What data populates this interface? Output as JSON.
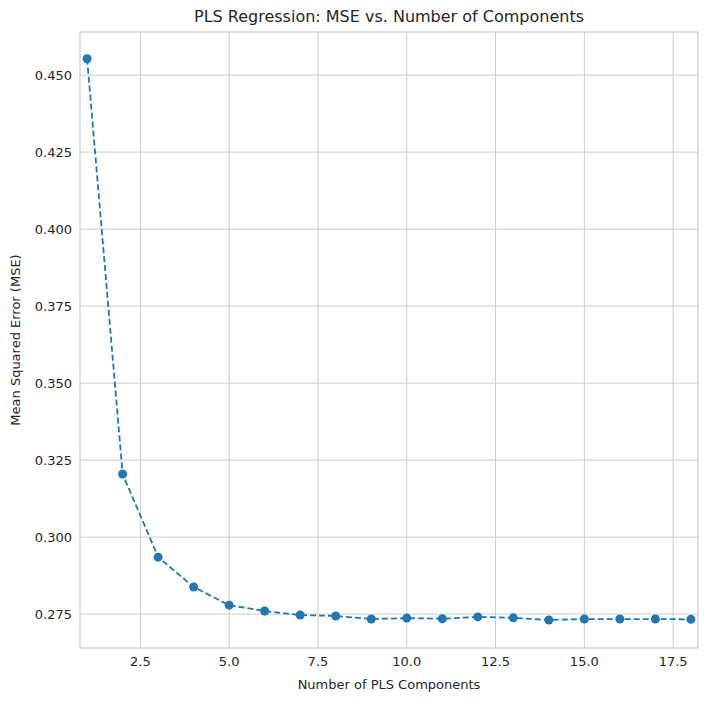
{
  "chart_data": {
    "type": "line",
    "title": "PLS Regression: MSE vs. Number of Components",
    "x_label": "Number of PLS Components",
    "y_label": "Mean Squared Error (MSE)",
    "x": [
      1,
      2,
      3,
      4,
      5,
      6,
      7,
      8,
      9,
      10,
      11,
      12,
      13,
      14,
      15,
      16,
      17,
      18
    ],
    "values": [
      0.4553,
      0.3205,
      0.2935,
      0.2838,
      0.2779,
      0.276,
      0.2747,
      0.2744,
      0.2734,
      0.2737,
      0.2735,
      0.2741,
      0.2738,
      0.2731,
      0.2734,
      0.2734,
      0.2734,
      0.2733
    ],
    "color": "#1f77b4",
    "marker": "circle",
    "line_style": "dashed",
    "grid": true,
    "xlim": [
      0.8,
      18.2
    ],
    "ylim": [
      0.264,
      0.464
    ],
    "xticks": [
      2.5,
      {
        "value": 5,
        "label": "5.0"
      },
      7.5,
      {
        "value": 10,
        "label": "10.0"
      },
      12.5,
      {
        "value": 15,
        "label": "15.0"
      },
      17.5
    ],
    "yticks": [
      0.275,
      {
        "value": 0.3,
        "label": "0.300"
      },
      0.325,
      {
        "value": 0.35,
        "label": "0.350"
      },
      0.375,
      {
        "value": 0.4,
        "label": "0.400"
      },
      0.425,
      {
        "value": 0.45,
        "label": "0.450"
      }
    ]
  }
}
